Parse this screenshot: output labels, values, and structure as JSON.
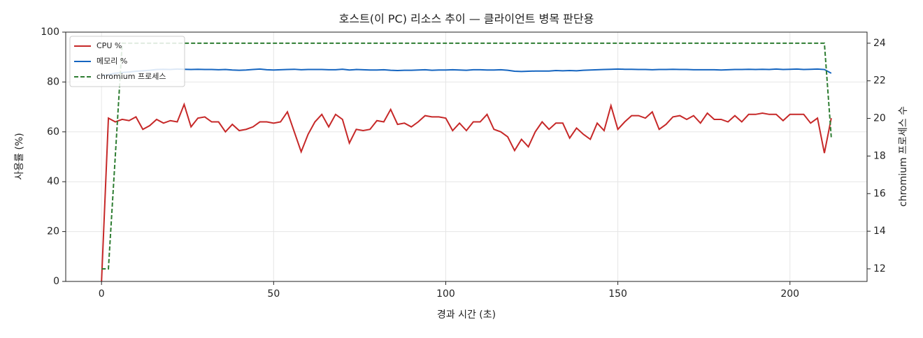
{
  "chart_data": {
    "type": "line",
    "title": "호스트(이 PC) 리소스 추이 — 클라이언트 병목 판단용",
    "xlabel": "경과 시간 (초)",
    "ylabel": "사용률 (%)",
    "y2label": "chromium 프로세스 수",
    "x": [
      0,
      2,
      4,
      6,
      8,
      10,
      12,
      14,
      16,
      18,
      20,
      22,
      24,
      26,
      28,
      30,
      32,
      34,
      36,
      38,
      40,
      42,
      44,
      46,
      48,
      50,
      52,
      54,
      56,
      58,
      60,
      62,
      64,
      66,
      68,
      70,
      72,
      74,
      76,
      78,
      80,
      82,
      84,
      86,
      88,
      90,
      92,
      94,
      96,
      98,
      100,
      102,
      104,
      106,
      108,
      110,
      112,
      114,
      116,
      118,
      120,
      122,
      124,
      126,
      128,
      130,
      132,
      134,
      136,
      138,
      140,
      142,
      144,
      146,
      148,
      150,
      152,
      154,
      156,
      158,
      160,
      162,
      164,
      166,
      168,
      170,
      172,
      174,
      176,
      178,
      180,
      182,
      184,
      186,
      188,
      190,
      192,
      194,
      196,
      198,
      200,
      202,
      204,
      206,
      208,
      210,
      212
    ],
    "series": [
      {
        "name": "CPU %",
        "color": "#c62828",
        "dash": false,
        "values": [
          0,
          65.5,
          64,
          65,
          64.5,
          66,
          61,
          62.5,
          65,
          63.5,
          64.5,
          64,
          71,
          62,
          65.5,
          66,
          64,
          64,
          60,
          63,
          60.5,
          61,
          62,
          64,
          64,
          63.5,
          64,
          68,
          60,
          52,
          59,
          64,
          67,
          62,
          67,
          65,
          55.5,
          61,
          60.5,
          61,
          64.5,
          64,
          69,
          63,
          63.5,
          62,
          64,
          66.5,
          66,
          66,
          65.5,
          60.5,
          63.5,
          60.5,
          64,
          64,
          67,
          61,
          60,
          58,
          52.5,
          57,
          54,
          60,
          64,
          61,
          63.5,
          63.5,
          57.5,
          61.5,
          59,
          57,
          63.5,
          60.5,
          70.5,
          61,
          64,
          66.5,
          66.5,
          65.5,
          68,
          61,
          63,
          66,
          66.5,
          65,
          66.5,
          63.5,
          67.5,
          65,
          65,
          64,
          66.5,
          64,
          67,
          67,
          67.5,
          67,
          67,
          64.5,
          67,
          67,
          67,
          63.5,
          65.5,
          51.5,
          65.5
        ]
      },
      {
        "name": "메모리 %",
        "color": "#1565c0",
        "dash": false,
        "values": [
          82.5,
          83,
          83.5,
          83.8,
          84,
          84.3,
          84.5,
          84.7,
          85,
          85.1,
          85,
          85.2,
          85.1,
          85,
          85.1,
          85,
          85,
          84.9,
          85,
          84.8,
          84.7,
          84.8,
          85,
          85.2,
          84.9,
          84.8,
          84.9,
          85,
          85.1,
          84.9,
          85,
          85,
          85,
          84.9,
          84.9,
          85.1,
          84.8,
          85,
          84.9,
          84.8,
          84.8,
          84.9,
          84.7,
          84.6,
          84.7,
          84.7,
          84.8,
          84.9,
          84.7,
          84.8,
          84.8,
          84.9,
          84.8,
          84.7,
          84.9,
          84.9,
          84.8,
          84.8,
          84.9,
          84.7,
          84.3,
          84.2,
          84.3,
          84.4,
          84.4,
          84.4,
          84.6,
          84.5,
          84.6,
          84.5,
          84.7,
          84.8,
          84.9,
          85,
          85.1,
          85.2,
          85.1,
          85.1,
          85,
          85,
          84.9,
          85,
          85,
          85.1,
          85,
          85,
          84.9,
          84.9,
          84.9,
          84.9,
          84.8,
          84.9,
          85,
          85,
          85.1,
          85,
          85.1,
          85,
          85.2,
          85,
          85.1,
          85.2,
          85,
          85.1,
          85.2,
          85,
          83.5
        ]
      },
      {
        "name": "chromium 프로세스",
        "color": "#2e7d32",
        "dash": true,
        "axis": "y2",
        "values": [
          12,
          12,
          18,
          24,
          24,
          24,
          24,
          24,
          24,
          24,
          24,
          24,
          24,
          24,
          24,
          24,
          24,
          24,
          24,
          24,
          24,
          24,
          24,
          24,
          24,
          24,
          24,
          24,
          24,
          24,
          24,
          24,
          24,
          24,
          24,
          24,
          24,
          24,
          24,
          24,
          24,
          24,
          24,
          24,
          24,
          24,
          24,
          24,
          24,
          24,
          24,
          24,
          24,
          24,
          24,
          24,
          24,
          24,
          24,
          24,
          24,
          24,
          24,
          24,
          24,
          24,
          24,
          24,
          24,
          24,
          24,
          24,
          24,
          24,
          24,
          24,
          24,
          24,
          24,
          24,
          24,
          24,
          24,
          24,
          24,
          24,
          24,
          24,
          24,
          24,
          24,
          24,
          24,
          24,
          24,
          24,
          24,
          24,
          24,
          24,
          24,
          24,
          24,
          24,
          24,
          24,
          19
        ]
      }
    ],
    "xlim": [
      -10.4,
      222.4
    ],
    "xticks": [
      0,
      50,
      100,
      150,
      200
    ],
    "ylim": [
      0,
      100
    ],
    "yticks": [
      0,
      20,
      40,
      60,
      80,
      100
    ],
    "y2lim": [
      11.33,
      24.59
    ],
    "y2ticks": [
      12,
      14,
      16,
      18,
      20,
      22,
      24
    ],
    "grid": true,
    "legend": "upper left"
  }
}
